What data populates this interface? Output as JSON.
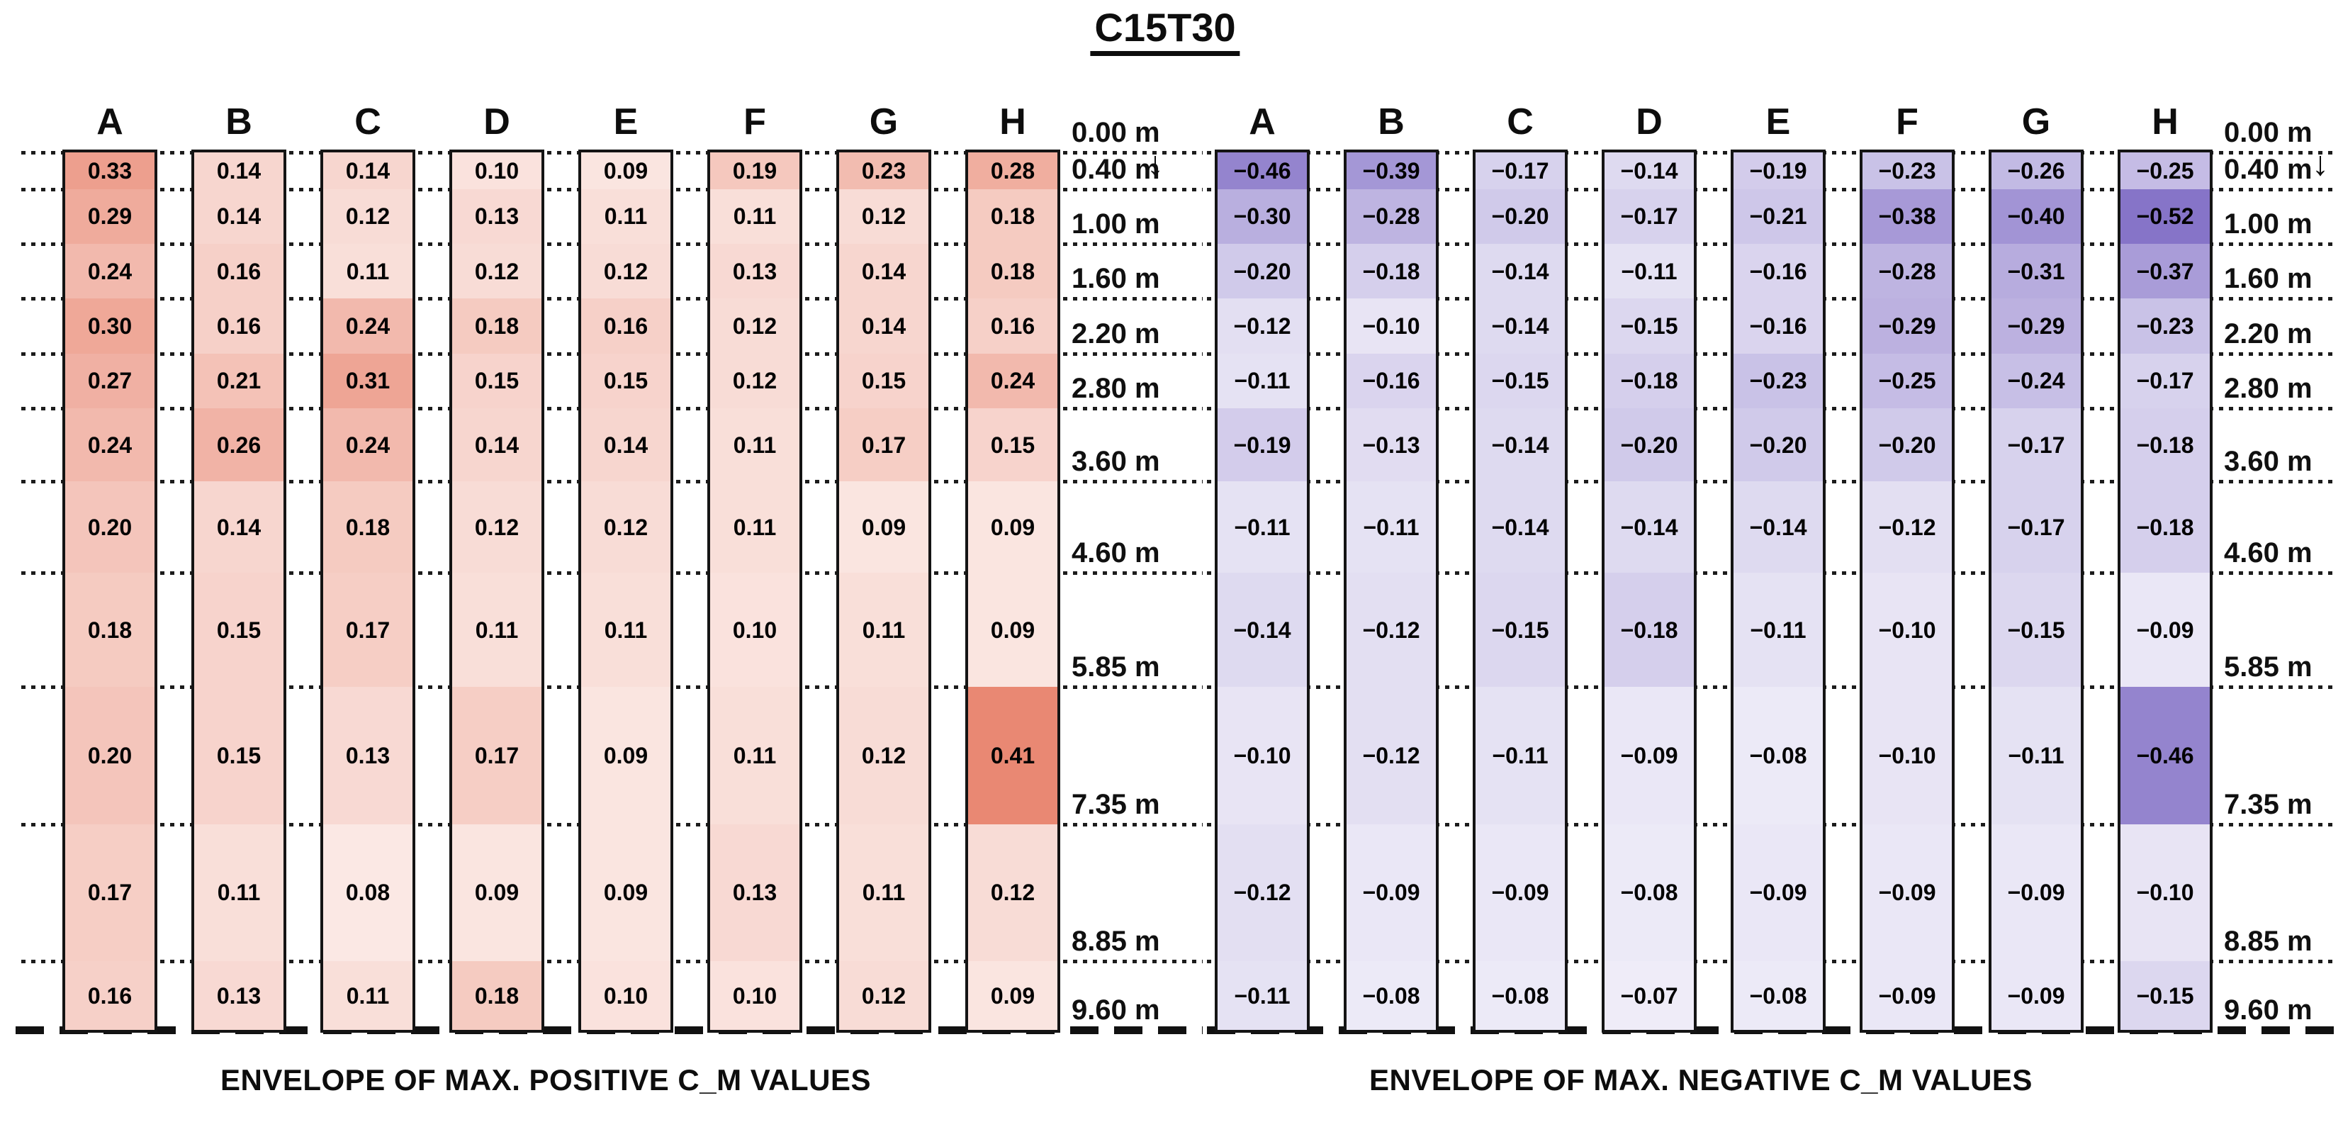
{
  "page": {
    "title": "C15T30"
  },
  "icons": {
    "down_arrow": "↓"
  },
  "chart_data": [
    {
      "type": "heatmap",
      "id": "positive",
      "title": "C15T30",
      "caption": "ENVELOPE OF MAX. POSITIVE C_M VALUES",
      "columns": [
        "A",
        "B",
        "C",
        "D",
        "E",
        "F",
        "G",
        "H"
      ],
      "depth_tick_labels": [
        "0.00 m",
        "0.40 m",
        "1.00 m",
        "1.60 m",
        "2.20 m",
        "2.80 m",
        "3.60 m",
        "4.60 m",
        "5.85 m",
        "7.35 m",
        "8.85 m",
        "9.60 m"
      ],
      "depth_boundaries_m": [
        0.0,
        0.4,
        1.0,
        1.6,
        2.2,
        2.8,
        3.6,
        4.6,
        5.85,
        7.35,
        8.85,
        9.6
      ],
      "base_color": "#E15F43",
      "max_abs_value": 0.55,
      "series": [
        {
          "name": "A",
          "values": [
            0.33,
            0.29,
            0.24,
            0.3,
            0.27,
            0.24,
            0.2,
            0.18,
            0.2,
            0.17,
            0.16
          ]
        },
        {
          "name": "B",
          "values": [
            0.14,
            0.14,
            0.16,
            0.16,
            0.21,
            0.26,
            0.14,
            0.15,
            0.15,
            0.11,
            0.13
          ]
        },
        {
          "name": "C",
          "values": [
            0.14,
            0.12,
            0.11,
            0.24,
            0.31,
            0.24,
            0.18,
            0.17,
            0.13,
            0.08,
            0.11
          ]
        },
        {
          "name": "D",
          "values": [
            0.1,
            0.13,
            0.12,
            0.18,
            0.15,
            0.14,
            0.12,
            0.11,
            0.17,
            0.09,
            0.18
          ]
        },
        {
          "name": "E",
          "values": [
            0.09,
            0.11,
            0.12,
            0.16,
            0.15,
            0.14,
            0.12,
            0.11,
            0.09,
            0.09,
            0.1
          ]
        },
        {
          "name": "F",
          "values": [
            0.19,
            0.11,
            0.13,
            0.12,
            0.12,
            0.11,
            0.11,
            0.1,
            0.11,
            0.13,
            0.1
          ]
        },
        {
          "name": "G",
          "values": [
            0.23,
            0.12,
            0.14,
            0.14,
            0.15,
            0.17,
            0.09,
            0.11,
            0.12,
            0.11,
            0.12
          ]
        },
        {
          "name": "H",
          "values": [
            0.28,
            0.18,
            0.18,
            0.16,
            0.24,
            0.15,
            0.09,
            0.09,
            0.41,
            0.12,
            0.09
          ]
        }
      ]
    },
    {
      "type": "heatmap",
      "id": "negative",
      "title": "C15T30",
      "caption": "ENVELOPE OF MAX. NEGATIVE C_M VALUES",
      "columns": [
        "A",
        "B",
        "C",
        "D",
        "E",
        "F",
        "G",
        "H"
      ],
      "depth_tick_labels": [
        "0.00 m",
        "0.40 m",
        "1.00 m",
        "1.60 m",
        "2.20 m",
        "2.80 m",
        "3.60 m",
        "4.60 m",
        "5.85 m",
        "7.35 m",
        "8.85 m",
        "9.60 m"
      ],
      "depth_boundaries_m": [
        0.0,
        0.4,
        1.0,
        1.6,
        2.2,
        2.8,
        3.6,
        4.6,
        5.85,
        7.35,
        8.85,
        9.6
      ],
      "base_color": "#7F6CC5",
      "max_abs_value": 0.55,
      "series": [
        {
          "name": "A",
          "values": [
            -0.46,
            -0.3,
            -0.2,
            -0.12,
            -0.11,
            -0.19,
            -0.11,
            -0.14,
            -0.1,
            -0.12,
            -0.11
          ]
        },
        {
          "name": "B",
          "values": [
            -0.39,
            -0.28,
            -0.18,
            -0.1,
            -0.16,
            -0.13,
            -0.11,
            -0.12,
            -0.12,
            -0.09,
            -0.08
          ]
        },
        {
          "name": "C",
          "values": [
            -0.17,
            -0.2,
            -0.14,
            -0.14,
            -0.15,
            -0.14,
            -0.14,
            -0.15,
            -0.11,
            -0.09,
            -0.08
          ]
        },
        {
          "name": "D",
          "values": [
            -0.14,
            -0.17,
            -0.11,
            -0.15,
            -0.18,
            -0.2,
            -0.14,
            -0.18,
            -0.09,
            -0.08,
            -0.07
          ]
        },
        {
          "name": "E",
          "values": [
            -0.19,
            -0.21,
            -0.16,
            -0.16,
            -0.23,
            -0.2,
            -0.14,
            -0.11,
            -0.08,
            -0.09,
            -0.08
          ]
        },
        {
          "name": "F",
          "values": [
            -0.23,
            -0.38,
            -0.28,
            -0.29,
            -0.25,
            -0.2,
            -0.12,
            -0.1,
            -0.1,
            -0.09,
            -0.09
          ]
        },
        {
          "name": "G",
          "values": [
            -0.26,
            -0.4,
            -0.31,
            -0.29,
            -0.24,
            -0.17,
            -0.17,
            -0.15,
            -0.11,
            -0.09,
            -0.09
          ]
        },
        {
          "name": "H",
          "values": [
            -0.25,
            -0.52,
            -0.37,
            -0.23,
            -0.17,
            -0.18,
            -0.18,
            -0.09,
            -0.46,
            -0.1,
            -0.15
          ]
        }
      ]
    }
  ]
}
